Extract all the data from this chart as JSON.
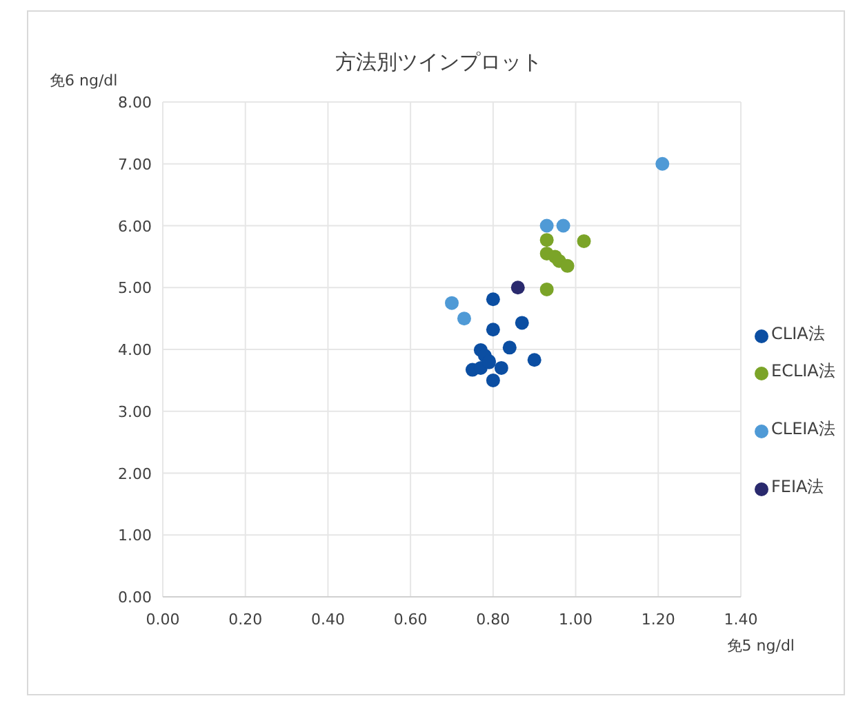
{
  "chart_data": {
    "type": "scatter",
    "title": "方法別ツインプロット",
    "xlabel": "免5 ng/dl",
    "ylabel": "免6 ng/dl",
    "xlim": [
      0,
      1.4
    ],
    "ylim": [
      0,
      8
    ],
    "xticks": [
      {
        "value": 0,
        "label": "0.00"
      },
      {
        "value": 0.2,
        "label": "0.20"
      },
      {
        "value": 0.4,
        "label": "0.40"
      },
      {
        "value": 0.6,
        "label": "0.60"
      },
      {
        "value": 0.8,
        "label": "0.80"
      },
      {
        "value": 1.0,
        "label": "1.00"
      },
      {
        "value": 1.2,
        "label": "1.20"
      },
      {
        "value": 1.4,
        "label": "1.40"
      }
    ],
    "yticks": [
      {
        "value": 0,
        "label": "0.00"
      },
      {
        "value": 1,
        "label": "1.00"
      },
      {
        "value": 2,
        "label": "2.00"
      },
      {
        "value": 3,
        "label": "3.00"
      },
      {
        "value": 4,
        "label": "4.00"
      },
      {
        "value": 5,
        "label": "5.00"
      },
      {
        "value": 6,
        "label": "6.00"
      },
      {
        "value": 7,
        "label": "7.00"
      },
      {
        "value": 8,
        "label": "8.00"
      }
    ],
    "grid": true,
    "legend": "right",
    "marker": "circle",
    "series": [
      {
        "name": "CLIA法",
        "color": "#0b4ea2",
        "x": [
          0.8,
          0.8,
          0.87,
          0.84,
          0.9,
          0.77,
          0.78,
          0.79,
          0.75,
          0.77,
          0.82,
          0.8,
          0.79
        ],
        "values": [
          4.81,
          4.32,
          4.43,
          4.03,
          3.83,
          3.99,
          3.9,
          3.81,
          3.67,
          3.7,
          3.7,
          3.5,
          3.79
        ]
      },
      {
        "name": "ECLIA法",
        "color": "#7ba428",
        "x": [
          0.93,
          1.02,
          0.93,
          0.95,
          0.96,
          0.98,
          0.93
        ],
        "values": [
          5.77,
          5.75,
          5.55,
          5.5,
          5.43,
          5.35,
          4.97
        ]
      },
      {
        "name": "CLEIA法",
        "color": "#4f9ad6",
        "x": [
          1.21,
          0.93,
          0.97,
          0.7,
          0.73
        ],
        "values": [
          7.0,
          6.0,
          6.0,
          4.75,
          4.5
        ]
      },
      {
        "name": "FEIA法",
        "color": "#2a2a6e",
        "x": [
          0.86
        ],
        "values": [
          5.0
        ]
      }
    ]
  }
}
